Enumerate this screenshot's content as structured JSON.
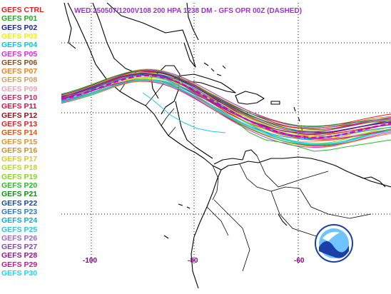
{
  "title": "WED 250507/1200V108  200 HPA 1238 DM - GFS OPR 00Z (DASHED)",
  "colors": {
    "title": "#9B30D0",
    "coast": "#000000",
    "grid": "#000000",
    "opr": "#D000D0",
    "lon_label": "#8B008B",
    "noaa_blue": "#1a3fa8",
    "noaa_light": "#6fc3ff"
  },
  "legend": [
    {
      "label": "GEFS CTRL",
      "color": "#E8191B"
    },
    {
      "label": "GEFS P01",
      "color": "#22A822"
    },
    {
      "label": "GEFS P02",
      "color": "#141FA0"
    },
    {
      "label": "GEFS P03",
      "color": "#F0F000"
    },
    {
      "label": "GEFS P04",
      "color": "#00C8D0"
    },
    {
      "label": "GEFS P05",
      "color": "#E028E0"
    },
    {
      "label": "GEFS P06",
      "color": "#8B4A1A"
    },
    {
      "label": "GEFS P07",
      "color": "#F08020"
    },
    {
      "label": "GEFS P08",
      "color": "#C8A060"
    },
    {
      "label": "GEFS P09",
      "color": "#F0A0B0"
    },
    {
      "label": "GEFS P10",
      "color": "#D02060"
    },
    {
      "label": "GEFS P11",
      "color": "#D81040"
    },
    {
      "label": "GEFS P12",
      "color": "#8B1010"
    },
    {
      "label": "GEFS P13",
      "color": "#E02020"
    },
    {
      "label": "GEFS P14",
      "color": "#E85010"
    },
    {
      "label": "GEFS P15",
      "color": "#E89020"
    },
    {
      "label": "GEFS P16",
      "color": "#C8902A"
    },
    {
      "label": "GEFS P17",
      "color": "#D8C820"
    },
    {
      "label": "GEFS P18",
      "color": "#B8D820"
    },
    {
      "label": "GEFS P19",
      "color": "#80D820"
    },
    {
      "label": "GEFS P20",
      "color": "#28B828"
    },
    {
      "label": "GEFS P21",
      "color": "#108A10"
    },
    {
      "label": "GEFS P22",
      "color": "#104A9A"
    },
    {
      "label": "GEFS P23",
      "color": "#2878D8"
    },
    {
      "label": "GEFS P24",
      "color": "#10A8D0"
    },
    {
      "label": "GEFS P25",
      "color": "#20C8E8"
    },
    {
      "label": "GEFS P26",
      "color": "#9868C8"
    },
    {
      "label": "GEFS P27",
      "color": "#8848A8"
    },
    {
      "label": "GEFS P28",
      "color": "#8A1A8A"
    },
    {
      "label": "GEFS P29",
      "color": "#C01890"
    },
    {
      "label": "GEFS P30",
      "color": "#20D0F0"
    }
  ],
  "longitude_labels": [
    "-100",
    "-80",
    "-60"
  ]
}
